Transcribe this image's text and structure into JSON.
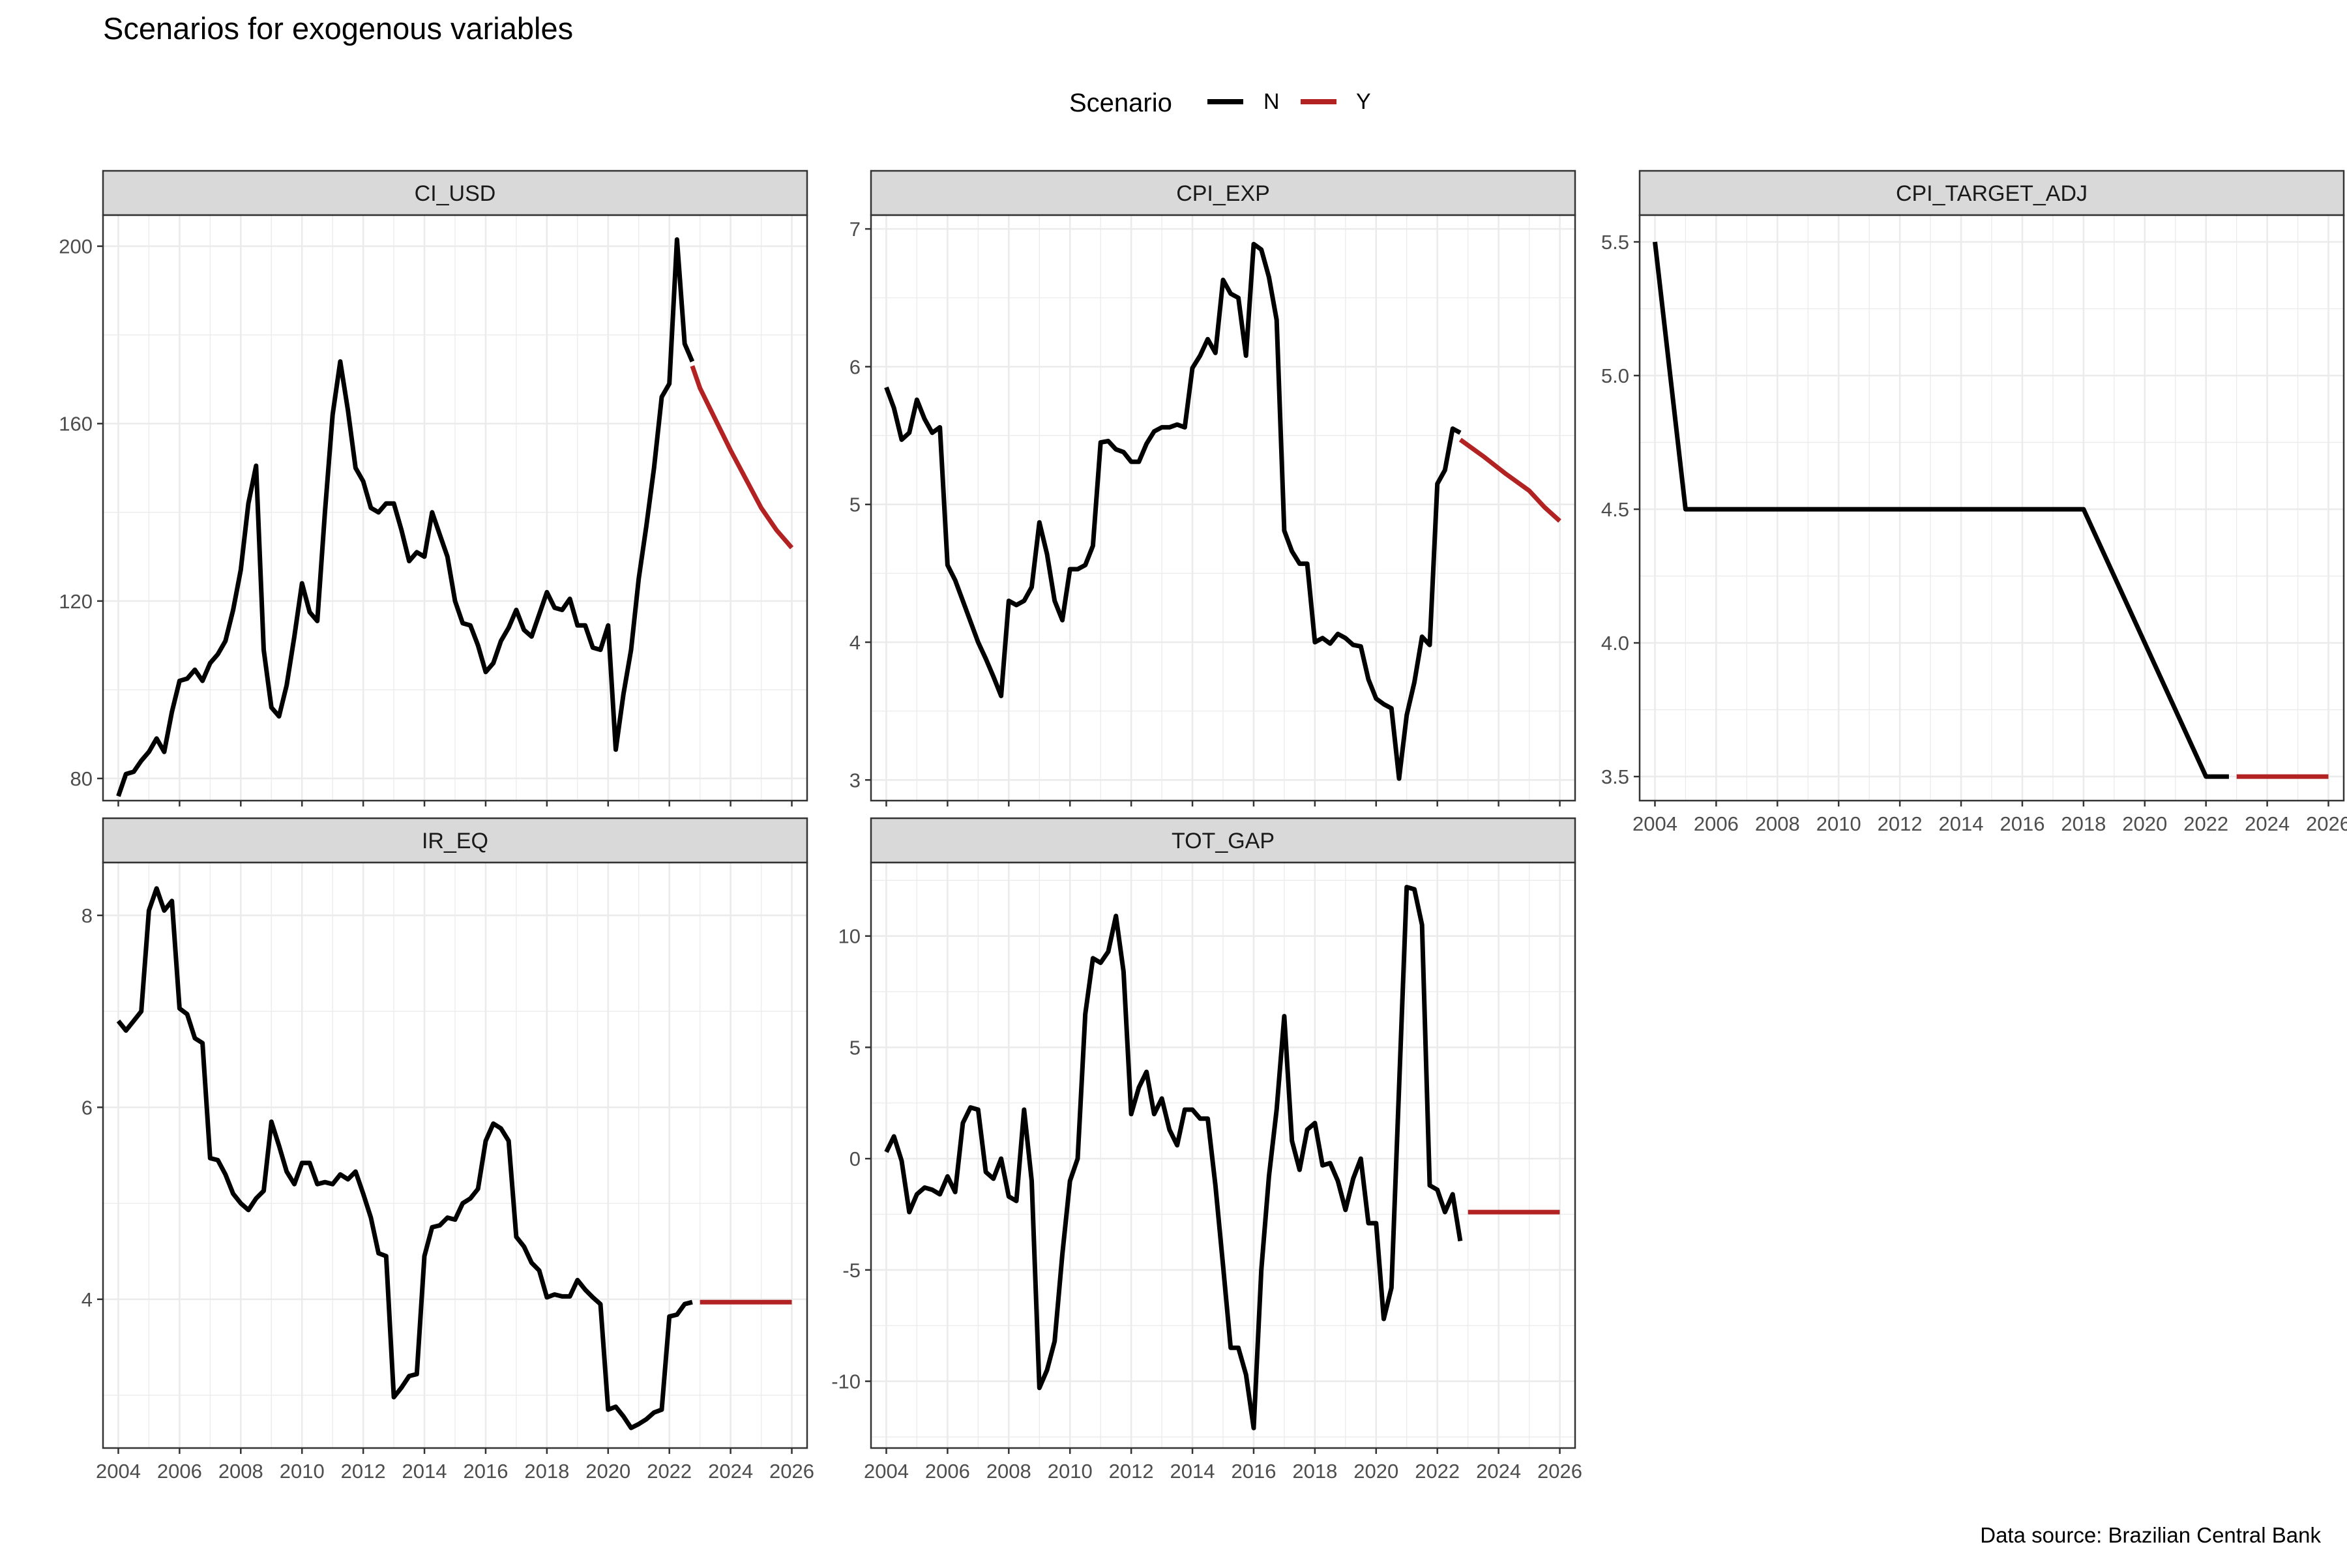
{
  "title": "Scenarios for exogenous variables",
  "caption": "Data source: Brazilian Central Bank",
  "legend": {
    "title": "Scenario",
    "placement": "top",
    "items": [
      {
        "key": "N",
        "label": "N",
        "color": "#000000"
      },
      {
        "key": "Y",
        "label": "Y",
        "color": "#B22222"
      }
    ]
  },
  "chart_data": [
    {
      "panel": "CI_USD",
      "type": "line",
      "xlim": [
        2003.5,
        2026.5
      ],
      "ylim": [
        75,
        207
      ],
      "yticks": [
        80,
        120,
        160,
        200
      ],
      "xticks": [
        2004,
        2006,
        2008,
        2010,
        2012,
        2014,
        2016,
        2018,
        2020,
        2022,
        2024,
        2026
      ],
      "x_tick_labels_shown": false,
      "grid": true,
      "series": [
        {
          "name": "N",
          "x": [
            2004.0,
            2004.25,
            2004.5,
            2004.75,
            2005.0,
            2005.25,
            2005.5,
            2005.75,
            2006.0,
            2006.25,
            2006.5,
            2006.75,
            2007.0,
            2007.25,
            2007.5,
            2007.75,
            2008.0,
            2008.25,
            2008.5,
            2008.75,
            2009.0,
            2009.25,
            2009.5,
            2009.75,
            2010.0,
            2010.25,
            2010.5,
            2010.75,
            2011.0,
            2011.25,
            2011.5,
            2011.75,
            2012.0,
            2012.25,
            2012.5,
            2012.75,
            2013.0,
            2013.25,
            2013.5,
            2013.75,
            2014.0,
            2014.25,
            2014.5,
            2014.75,
            2015.0,
            2015.25,
            2015.5,
            2015.75,
            2016.0,
            2016.25,
            2016.5,
            2016.75,
            2017.0,
            2017.25,
            2017.5,
            2017.75,
            2018.0,
            2018.25,
            2018.5,
            2018.75,
            2019.0,
            2019.25,
            2019.5,
            2019.75,
            2020.0,
            2020.25,
            2020.5,
            2020.75,
            2021.0,
            2021.25,
            2021.5,
            2021.75,
            2022.0,
            2022.25,
            2022.5,
            2022.75
          ],
          "y": [
            76,
            81,
            81.5,
            84,
            86,
            89,
            86,
            95,
            102,
            102.5,
            104.5,
            102,
            106,
            108,
            111,
            118,
            127,
            142,
            150.5,
            109,
            96,
            94,
            101,
            112,
            124,
            117.5,
            115.5,
            140,
            162,
            174,
            163,
            150,
            147,
            141,
            140,
            142,
            142,
            136,
            129,
            131,
            130,
            140,
            135,
            130,
            120,
            115,
            114.5,
            110,
            104,
            106,
            111,
            114,
            118,
            113.5,
            112,
            117,
            122,
            118.5,
            118,
            120.5,
            114.5,
            114.5,
            109.5,
            109,
            114.5,
            86.5,
            99,
            109,
            125,
            137,
            150,
            166,
            169,
            201.5,
            178,
            174
          ]
        },
        {
          "name": "Y",
          "x": [
            2022.75,
            2023.0,
            2023.5,
            2024.0,
            2024.5,
            2025.0,
            2025.5,
            2026.0
          ],
          "y": [
            173,
            168,
            161,
            154,
            147.5,
            141,
            136,
            132
          ]
        }
      ]
    },
    {
      "panel": "CPI_EXP",
      "type": "line",
      "xlim": [
        2003.5,
        2026.5
      ],
      "ylim": [
        2.85,
        7.1
      ],
      "yticks": [
        3,
        4,
        5,
        6,
        7
      ],
      "xticks": [
        2004,
        2006,
        2008,
        2010,
        2012,
        2014,
        2016,
        2018,
        2020,
        2022,
        2024,
        2026
      ],
      "x_tick_labels_shown": false,
      "grid": true,
      "series": [
        {
          "name": "N",
          "x": [
            2004.0,
            2004.25,
            2004.5,
            2004.75,
            2005.0,
            2005.25,
            2005.5,
            2005.75,
            2006.0,
            2006.25,
            2006.5,
            2006.75,
            2007.0,
            2007.25,
            2007.5,
            2007.75,
            2008.0,
            2008.25,
            2008.5,
            2008.75,
            2009.0,
            2009.25,
            2009.5,
            2009.75,
            2010.0,
            2010.25,
            2010.5,
            2010.75,
            2011.0,
            2011.25,
            2011.5,
            2011.75,
            2012.0,
            2012.25,
            2012.5,
            2012.75,
            2013.0,
            2013.25,
            2013.5,
            2013.75,
            2014.0,
            2014.25,
            2014.5,
            2014.75,
            2015.0,
            2015.25,
            2015.5,
            2015.75,
            2016.0,
            2016.25,
            2016.5,
            2016.75,
            2017.0,
            2017.25,
            2017.5,
            2017.75,
            2018.0,
            2018.25,
            2018.5,
            2018.75,
            2019.0,
            2019.25,
            2019.5,
            2019.75,
            2020.0,
            2020.25,
            2020.5,
            2020.75,
            2021.0,
            2021.25,
            2021.5,
            2021.75,
            2022.0,
            2022.25,
            2022.5,
            2022.75
          ],
          "y": [
            5.85,
            5.7,
            5.47,
            5.52,
            5.76,
            5.62,
            5.52,
            5.56,
            4.56,
            4.45,
            4.3,
            4.15,
            4.0,
            3.88,
            3.75,
            3.61,
            4.3,
            4.27,
            4.3,
            4.4,
            4.87,
            4.64,
            4.3,
            4.16,
            4.53,
            4.53,
            4.56,
            4.7,
            5.45,
            5.46,
            5.4,
            5.38,
            5.31,
            5.31,
            5.44,
            5.53,
            5.56,
            5.56,
            5.58,
            5.56,
            5.99,
            6.08,
            6.2,
            6.1,
            6.63,
            6.53,
            6.5,
            6.08,
            6.89,
            6.85,
            6.65,
            6.34,
            4.81,
            4.66,
            4.57,
            4.57,
            4.0,
            4.03,
            3.99,
            4.06,
            4.03,
            3.98,
            3.97,
            3.73,
            3.59,
            3.55,
            3.52,
            3.01,
            3.47,
            3.71,
            4.04,
            3.98,
            5.15,
            5.25,
            5.55,
            5.52
          ]
        },
        {
          "name": "Y",
          "x": [
            2022.75,
            2023.5,
            2024.25,
            2025.0,
            2025.5,
            2026.0
          ],
          "y": [
            5.47,
            5.35,
            5.22,
            5.1,
            4.98,
            4.88
          ]
        }
      ]
    },
    {
      "panel": "CPI_TARGET_ADJ",
      "type": "line",
      "xlim": [
        2003.5,
        2026.5
      ],
      "ylim": [
        3.41,
        5.6
      ],
      "yticks": [
        3.5,
        4.0,
        4.5,
        5.0,
        5.5
      ],
      "ytick_labels": [
        "3.5",
        "4.0",
        "4.5",
        "5.0",
        "5.5"
      ],
      "xticks": [
        2004,
        2006,
        2008,
        2010,
        2012,
        2014,
        2016,
        2018,
        2020,
        2022,
        2024,
        2026
      ],
      "x_tick_labels_shown": true,
      "grid": true,
      "series": [
        {
          "name": "N",
          "x": [
            2004.0,
            2005.0,
            2018.0,
            2022.0,
            2022.75
          ],
          "y": [
            5.5,
            4.5,
            4.5,
            3.5,
            3.5
          ]
        },
        {
          "name": "Y",
          "x": [
            2023.0,
            2026.0
          ],
          "y": [
            3.5,
            3.5
          ]
        }
      ]
    },
    {
      "panel": "IR_EQ",
      "type": "line",
      "xlim": [
        2003.5,
        2026.5
      ],
      "ylim": [
        2.45,
        8.55
      ],
      "yticks": [
        4,
        6,
        8
      ],
      "xticks": [
        2004,
        2006,
        2008,
        2010,
        2012,
        2014,
        2016,
        2018,
        2020,
        2022,
        2024,
        2026
      ],
      "x_tick_labels_shown": true,
      "grid": true,
      "series": [
        {
          "name": "N",
          "x": [
            2004.0,
            2004.25,
            2004.5,
            2004.75,
            2005.0,
            2005.25,
            2005.5,
            2005.75,
            2006.0,
            2006.25,
            2006.5,
            2006.75,
            2007.0,
            2007.25,
            2007.5,
            2007.75,
            2008.0,
            2008.25,
            2008.5,
            2008.75,
            2009.0,
            2009.25,
            2009.5,
            2009.75,
            2010.0,
            2010.25,
            2010.5,
            2010.75,
            2011.0,
            2011.25,
            2011.5,
            2011.75,
            2012.0,
            2012.25,
            2012.5,
            2012.75,
            2013.0,
            2013.25,
            2013.5,
            2013.75,
            2014.0,
            2014.25,
            2014.5,
            2014.75,
            2015.0,
            2015.25,
            2015.5,
            2015.75,
            2016.0,
            2016.25,
            2016.5,
            2016.75,
            2017.0,
            2017.25,
            2017.5,
            2017.75,
            2018.0,
            2018.25,
            2018.5,
            2018.75,
            2019.0,
            2019.25,
            2019.5,
            2019.75,
            2020.0,
            2020.25,
            2020.5,
            2020.75,
            2021.0,
            2021.25,
            2021.5,
            2021.75,
            2022.0,
            2022.25,
            2022.5,
            2022.75
          ],
          "y": [
            6.9,
            6.8,
            6.9,
            7.0,
            8.05,
            8.28,
            8.05,
            8.15,
            7.03,
            6.97,
            6.72,
            6.67,
            5.47,
            5.45,
            5.3,
            5.1,
            5.0,
            4.93,
            5.05,
            5.13,
            5.85,
            5.6,
            5.33,
            5.2,
            5.42,
            5.42,
            5.2,
            5.22,
            5.2,
            5.3,
            5.25,
            5.33,
            5.1,
            4.85,
            4.48,
            4.45,
            2.98,
            3.08,
            3.2,
            3.22,
            4.45,
            4.75,
            4.77,
            4.85,
            4.83,
            5.0,
            5.05,
            5.15,
            5.65,
            5.83,
            5.78,
            5.65,
            4.65,
            4.55,
            4.38,
            4.3,
            4.02,
            4.05,
            4.03,
            4.03,
            4.2,
            4.1,
            4.02,
            3.95,
            2.85,
            2.88,
            2.78,
            2.66,
            2.7,
            2.75,
            2.82,
            2.85,
            3.82,
            3.84,
            3.95,
            3.97
          ]
        },
        {
          "name": "Y",
          "x": [
            2023.0,
            2026.0
          ],
          "y": [
            3.97,
            3.97
          ]
        }
      ]
    },
    {
      "panel": "TOT_GAP",
      "type": "line",
      "xlim": [
        2003.5,
        2026.5
      ],
      "ylim": [
        -13.0,
        13.3
      ],
      "yticks": [
        -10,
        -5,
        0,
        5,
        10
      ],
      "xticks": [
        2004,
        2006,
        2008,
        2010,
        2012,
        2014,
        2016,
        2018,
        2020,
        2022,
        2024,
        2026
      ],
      "x_tick_labels_shown": true,
      "grid": true,
      "series": [
        {
          "name": "N",
          "x": [
            2004.0,
            2004.25,
            2004.5,
            2004.75,
            2005.0,
            2005.25,
            2005.5,
            2005.75,
            2006.0,
            2006.25,
            2006.5,
            2006.75,
            2007.0,
            2007.25,
            2007.5,
            2007.75,
            2008.0,
            2008.25,
            2008.5,
            2008.75,
            2009.0,
            2009.25,
            2009.5,
            2009.75,
            2010.0,
            2010.25,
            2010.5,
            2010.75,
            2011.0,
            2011.25,
            2011.5,
            2011.75,
            2012.0,
            2012.25,
            2012.5,
            2012.75,
            2013.0,
            2013.25,
            2013.5,
            2013.75,
            2014.0,
            2014.25,
            2014.5,
            2014.75,
            2015.0,
            2015.25,
            2015.5,
            2015.75,
            2016.0,
            2016.25,
            2016.5,
            2016.75,
            2017.0,
            2017.25,
            2017.5,
            2017.75,
            2018.0,
            2018.25,
            2018.5,
            2018.75,
            2019.0,
            2019.25,
            2019.5,
            2019.75,
            2020.0,
            2020.25,
            2020.5,
            2020.75,
            2021.0,
            2021.25,
            2021.5,
            2021.75,
            2022.0,
            2022.25,
            2022.5,
            2022.75
          ],
          "y": [
            0.3,
            1.0,
            -0.1,
            -2.4,
            -1.6,
            -1.3,
            -1.4,
            -1.6,
            -0.8,
            -1.5,
            1.6,
            2.3,
            2.2,
            -0.6,
            -0.9,
            0.0,
            -1.7,
            -1.9,
            2.2,
            -1.0,
            -10.3,
            -9.5,
            -8.2,
            -4.3,
            -1.0,
            0.0,
            6.5,
            9.0,
            8.8,
            9.3,
            10.9,
            8.4,
            2.0,
            3.2,
            3.9,
            2.0,
            2.7,
            1.3,
            0.6,
            2.2,
            2.2,
            1.8,
            1.8,
            -1.2,
            -4.8,
            -8.5,
            -8.5,
            -9.7,
            -12.1,
            -5.0,
            -0.8,
            2.2,
            6.4,
            0.8,
            -0.5,
            1.3,
            1.6,
            -0.3,
            -0.2,
            -1.0,
            -2.3,
            -0.9,
            0.0,
            -2.9,
            -2.9,
            -7.2,
            -5.8,
            3.2,
            12.2,
            12.1,
            10.5,
            -1.2,
            -1.4,
            -2.4,
            -1.6,
            -3.7
          ]
        },
        {
          "name": "Y",
          "x": [
            2023.0,
            2026.0
          ],
          "y": [
            -2.4,
            -2.4
          ]
        }
      ]
    }
  ]
}
